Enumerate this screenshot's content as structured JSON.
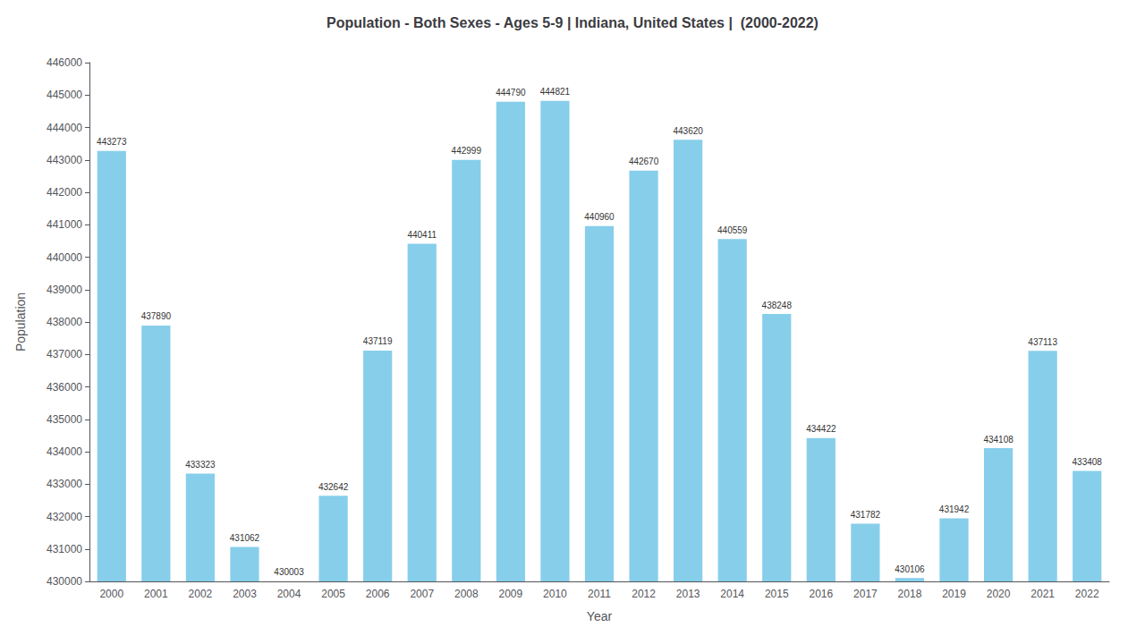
{
  "chart_data": {
    "type": "bar",
    "title": "Population - Both Sexes - Ages 5-9 | Indiana, United States |  (2000-2022)",
    "x_label": "Year",
    "y_label": "Population",
    "categories": [
      "2000",
      "2001",
      "2002",
      "2003",
      "2004",
      "2005",
      "2006",
      "2007",
      "2008",
      "2009",
      "2010",
      "2011",
      "2012",
      "2013",
      "2014",
      "2015",
      "2016",
      "2017",
      "2018",
      "2019",
      "2020",
      "2021",
      "2022"
    ],
    "values": [
      443273,
      437890,
      433323,
      431062,
      430003,
      432642,
      437119,
      440411,
      442999,
      444790,
      444821,
      440960,
      442670,
      443620,
      440559,
      438248,
      434422,
      431782,
      430106,
      431942,
      434108,
      437113,
      433408
    ],
    "color": "#87CEEB",
    "ylim": [
      430000,
      446000
    ],
    "yticks": [
      430000,
      431000,
      432000,
      433000,
      434000,
      435000,
      436000,
      437000,
      438000,
      439000,
      440000,
      441000,
      442000,
      443000,
      444000,
      445000,
      446000
    ],
    "grid": false,
    "data_labels": true
  }
}
